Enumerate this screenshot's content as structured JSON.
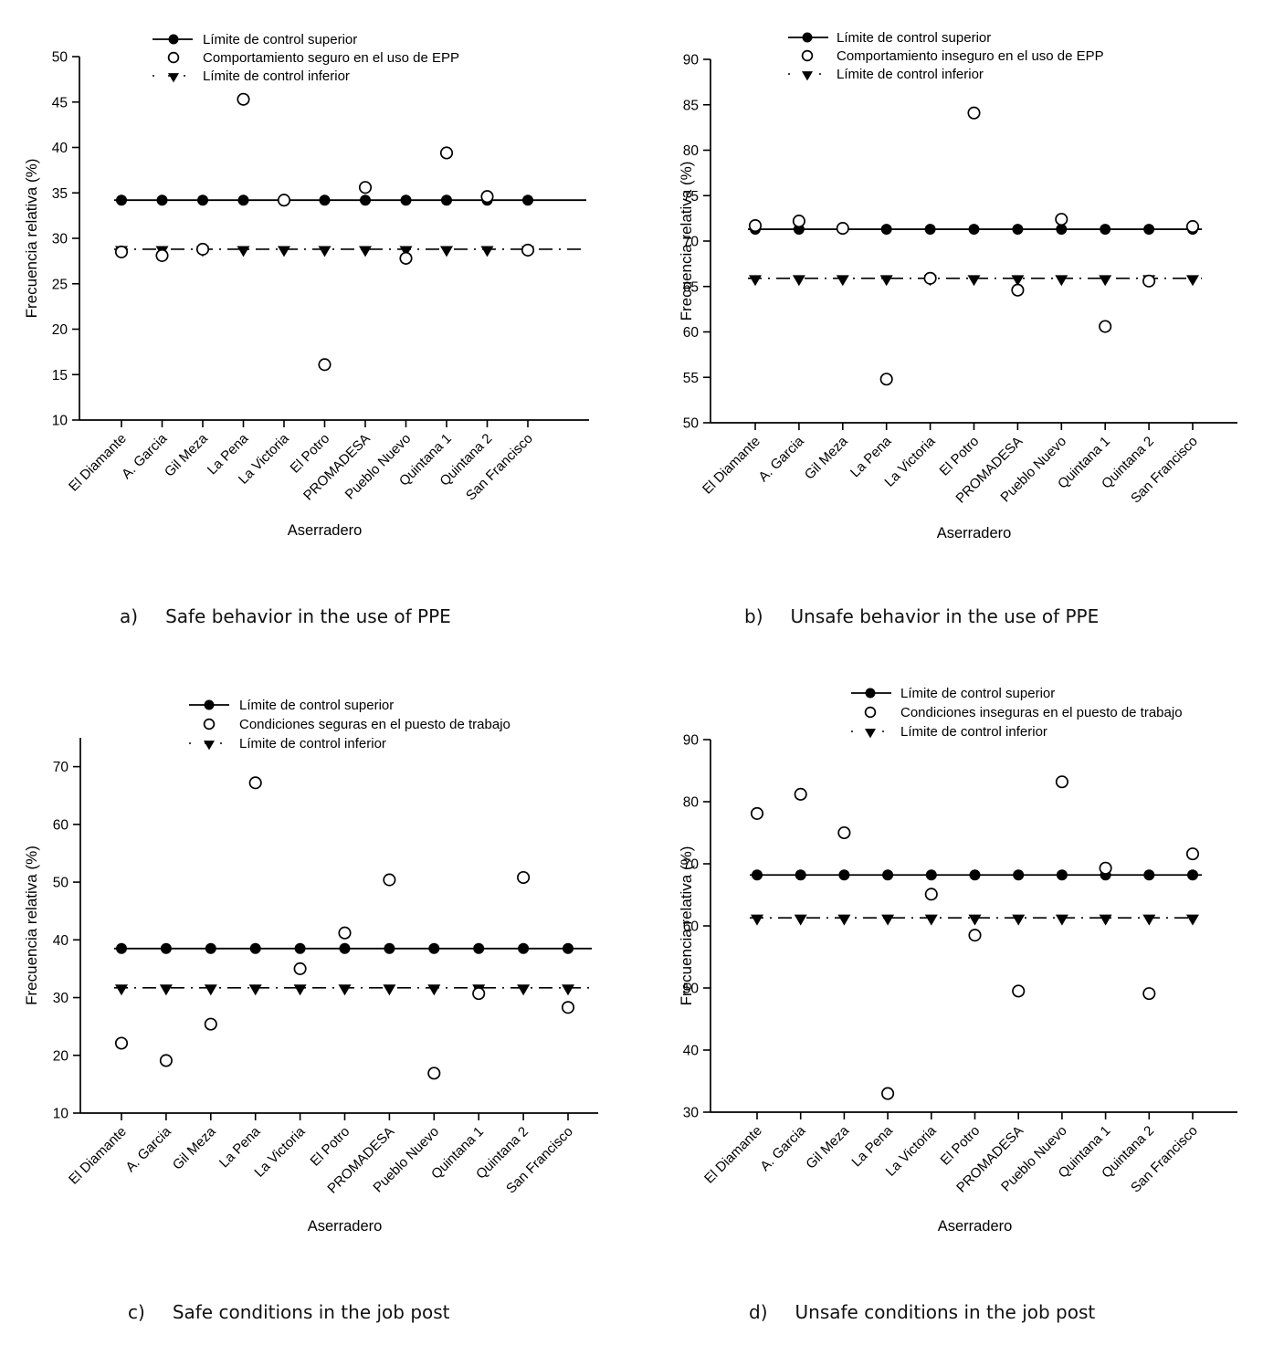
{
  "figure": {
    "background": "#ffffff",
    "foreground": "#000000",
    "description": "Four control charts of relative frequency per sawmill"
  },
  "chart_data": {
    "type": "scatter",
    "grid": false,
    "legend_position": "top-inside",
    "categories": [
      "El Diamante",
      "A. Garcia",
      "Gil Meza",
      "La Pena",
      "La Victoria",
      "El Potro",
      "PROMADESA",
      "Pueblo Nuevo",
      "Quintana 1",
      "Quintana 2",
      "San Francisco"
    ],
    "xlabel": "Aserradero",
    "ylabel": "Frecuencia relativa (%)",
    "panels": [
      {
        "id": "a",
        "caption_letter": "a)",
        "caption_text": "Safe behavior in the use of PPE",
        "legend_upper": "Límite de control superior",
        "legend_series": "Comportamiento seguro en el uso de EPP",
        "legend_lower": "Límite de control inferior",
        "ylim": [
          10,
          50
        ],
        "yticks": [
          10,
          15,
          20,
          25,
          30,
          35,
          40,
          45,
          50
        ],
        "ucl": 34.2,
        "lcl": 28.8,
        "values": [
          28.5,
          28.1,
          28.8,
          45.3,
          34.2,
          16.1,
          35.6,
          27.8,
          39.4,
          34.6,
          28.7
        ]
      },
      {
        "id": "b",
        "caption_letter": "b)",
        "caption_text": "Unsafe behavior in the use of PPE",
        "legend_upper": "Límite de control superior",
        "legend_series": "Comportamiento inseguro en el uso de EPP",
        "legend_lower": "Límite de control inferior",
        "ylim": [
          50,
          90
        ],
        "yticks": [
          50,
          55,
          60,
          65,
          70,
          75,
          80,
          85,
          90
        ],
        "ucl": 71.3,
        "lcl": 65.9,
        "values": [
          71.7,
          72.2,
          71.4,
          54.8,
          65.9,
          84.1,
          64.6,
          72.4,
          60.6,
          65.6,
          71.6
        ]
      },
      {
        "id": "c",
        "caption_letter": "c)",
        "caption_text": "Safe conditions in the job post",
        "legend_upper": "Límite de control superior",
        "legend_series": "Condiciones seguras en el puesto de trabajo",
        "legend_lower": "Límite de control inferior",
        "ylim": [
          10,
          75
        ],
        "yticks": [
          10,
          20,
          30,
          40,
          50,
          60,
          70
        ],
        "ucl": 38.5,
        "lcl": 31.7,
        "values": [
          22.1,
          19.1,
          25.4,
          67.2,
          35.0,
          41.2,
          50.4,
          16.9,
          30.7,
          50.8,
          28.3
        ]
      },
      {
        "id": "d",
        "caption_letter": "d)",
        "caption_text": "Unsafe conditions in the job post",
        "legend_upper": "Límite de control superior",
        "legend_series": "Condiciones inseguras en el puesto de trabajo",
        "legend_lower": "Límite de control inferior",
        "ylim": [
          30,
          90
        ],
        "yticks": [
          30,
          40,
          50,
          60,
          70,
          80,
          90
        ],
        "ucl": 68.2,
        "lcl": 61.3,
        "values": [
          78.1,
          81.2,
          75.0,
          33.0,
          65.1,
          58.5,
          49.5,
          83.2,
          69.3,
          49.1,
          71.6
        ]
      }
    ]
  }
}
